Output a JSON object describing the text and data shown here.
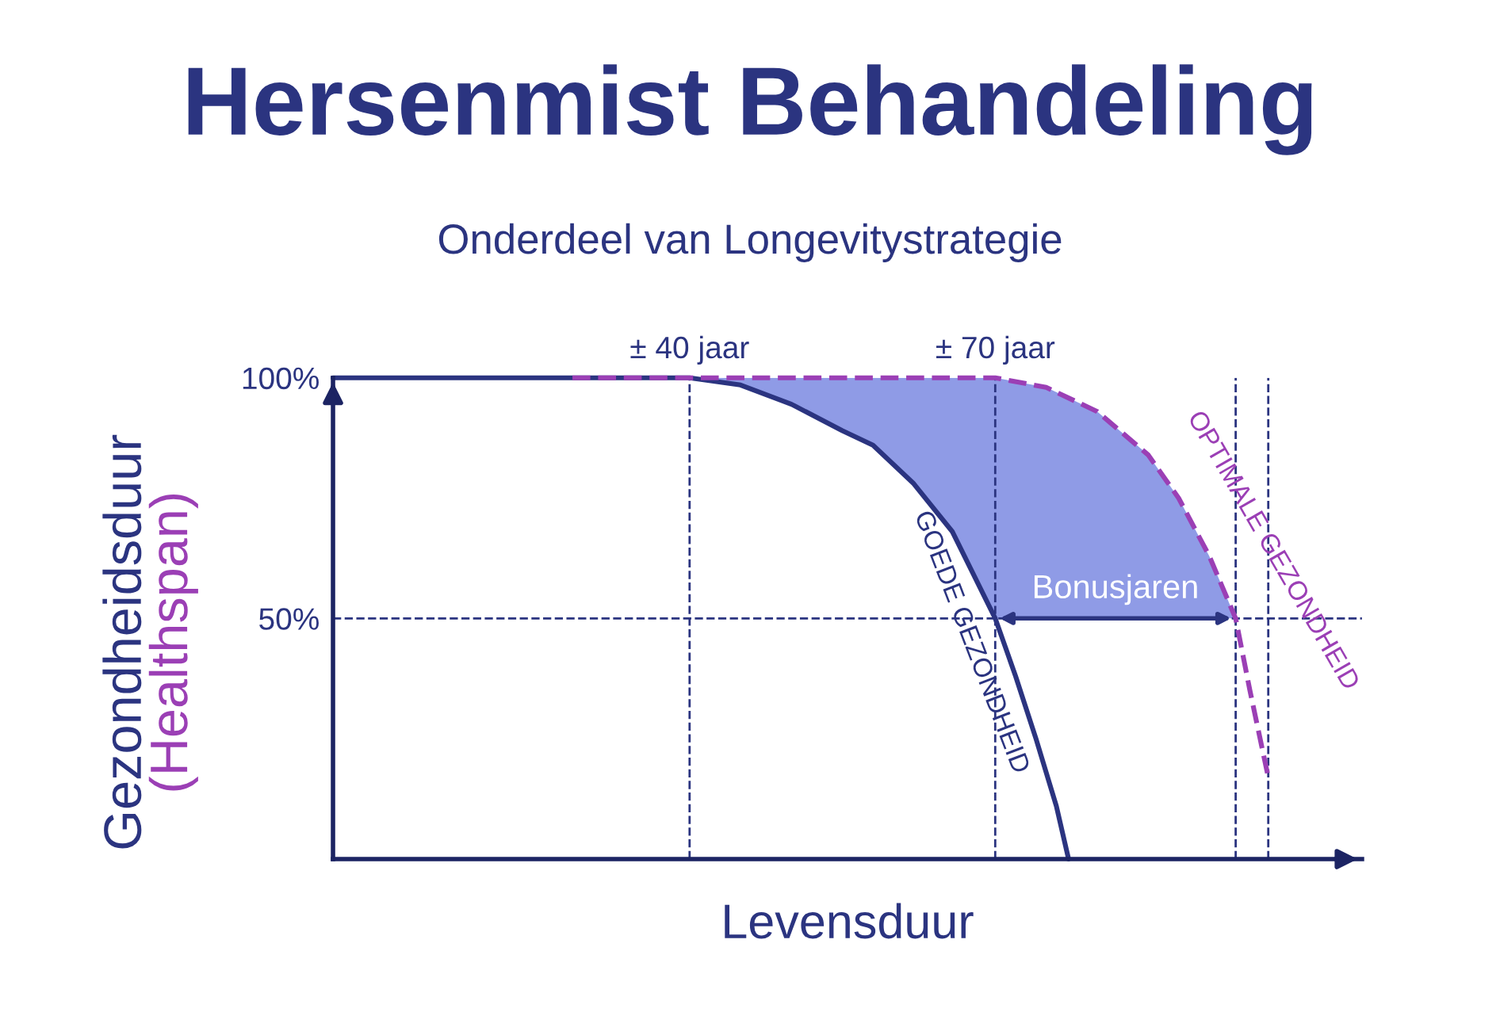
{
  "chart_data": {
    "type": "line",
    "title": "Hersenmist Behandeling",
    "subtitle": "Onderdeel van Longevitystrategie",
    "xlabel": "Levensduur",
    "ylabel": "Gezondheidsduur\n(Healthspan)",
    "xlim": [
      5,
      106
    ],
    "ylim": [
      0,
      100
    ],
    "xticks": [
      {
        "value": 40,
        "label": "± 40 jaar"
      },
      {
        "value": 70,
        "label": "± 70 jaar"
      }
    ],
    "yticks": [
      {
        "value": 50,
        "label": "50%"
      },
      {
        "value": 100,
        "label": "100%"
      }
    ],
    "series": [
      {
        "name": "GOEDE GEZONDHEID",
        "color": "#2b3480",
        "line_style": "solid",
        "x": [
          5,
          40,
          45,
          50,
          55,
          58,
          62,
          65.8,
          70,
          72,
          74,
          76,
          77.2
        ],
        "values": [
          100,
          100,
          98.5,
          94.5,
          89,
          86,
          78,
          68,
          50,
          38,
          25,
          11,
          0
        ]
      },
      {
        "name": "OPTIMALE GEZONDHEID",
        "color": "#9b3fb5",
        "line_style": "dashed",
        "x": [
          28.5,
          40,
          45,
          50,
          55,
          58,
          62,
          65.8,
          70,
          75,
          80,
          85,
          88,
          91,
          93.6,
          95,
          96,
          96.8
        ],
        "values": [
          100,
          100,
          100,
          100,
          100,
          100,
          100,
          100,
          100,
          98,
          93,
          84,
          75,
          63,
          50,
          35,
          25,
          17
        ],
        "upper": [
          null,
          100,
          100,
          100,
          100,
          100,
          100,
          100,
          100,
          98,
          93,
          84,
          75,
          63,
          50,
          null,
          null,
          null
        ],
        "lower": [
          null,
          100,
          98.5,
          94.5,
          89,
          86,
          78,
          68,
          50,
          50,
          50,
          50,
          50,
          50,
          50,
          null,
          null,
          null
        ]
      }
    ],
    "ref_lines": [
      {
        "axis": "x",
        "value": 40,
        "line_style": "dashed"
      },
      {
        "axis": "x",
        "value": 70,
        "line_style": "dashed"
      },
      {
        "axis": "x",
        "value": 93.6,
        "line_style": "dashed"
      },
      {
        "axis": "x",
        "value": 96.8,
        "line_style": "dashed"
      },
      {
        "axis": "y",
        "value": 50,
        "line_style": "dashed"
      }
    ],
    "annotations": [
      "Bonusjaren"
    ],
    "grid": false,
    "legend": false
  }
}
